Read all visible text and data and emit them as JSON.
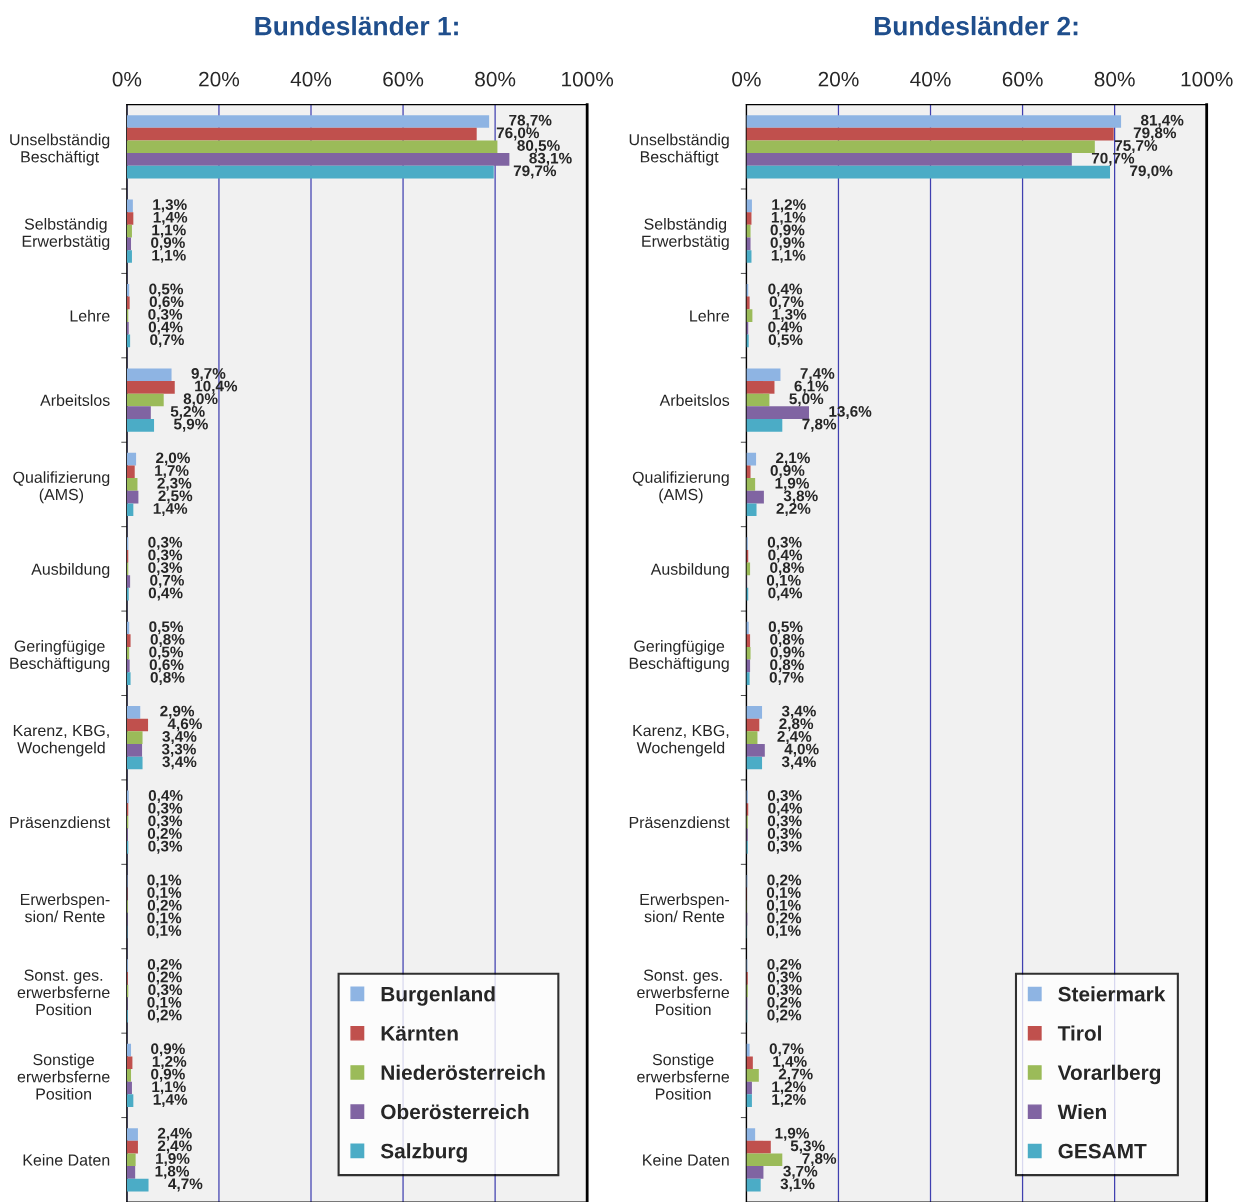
{
  "chart_data": [
    {
      "type": "bar",
      "orientation": "horizontal",
      "title": "Bundesländer 1:",
      "categories": [
        "Unselbständig\nBeschäftigt",
        "Selbständig\nErwerbstätig",
        "Lehre",
        "Arbeitslos",
        "Qualifizierung\n(AMS)",
        "Ausbildung",
        "Geringfügige\nBeschäftigung",
        "Karenz, KBG,\nWochengeld",
        "Präsenzdienst",
        "Erwerbspen-\nsion/ Rente",
        "Sonst. ges.\nerwerbsferne\nPosition",
        "Sonstige\nerwerbsferne\nPosition",
        "Keine Daten"
      ],
      "series": [
        {
          "name": "Burgenland",
          "color": "#8eb4e3",
          "values": [
            78.7,
            1.3,
            0.5,
            9.7,
            2.0,
            0.3,
            0.5,
            2.9,
            0.4,
            0.1,
            0.2,
            0.9,
            2.4
          ],
          "value_labels": [
            "78,7%",
            "1,3%",
            "0,5%",
            "9,7%",
            "2,0%",
            "0,3%",
            "0,5%",
            "2,9%",
            "0,4%",
            "0,1%",
            "0,2%",
            "0,9%",
            "2,4%"
          ]
        },
        {
          "name": "Kärnten",
          "color": "#c0504d",
          "values": [
            76.0,
            1.4,
            0.6,
            10.4,
            1.7,
            0.3,
            0.8,
            4.6,
            0.3,
            0.1,
            0.2,
            1.2,
            2.4
          ],
          "value_labels": [
            "76,0%",
            "1,4%",
            "0,6%",
            "10,4%",
            "1,7%",
            "0,3%",
            "0,8%",
            "4,6%",
            "0,3%",
            "0,1%",
            "0,2%",
            "1,2%",
            "2,4%"
          ]
        },
        {
          "name": "Niederösterreich",
          "color": "#9bbb59",
          "values": [
            80.5,
            1.1,
            0.3,
            8.0,
            2.3,
            0.3,
            0.5,
            3.4,
            0.3,
            0.2,
            0.3,
            0.9,
            1.9
          ],
          "value_labels": [
            "80,5%",
            "1,1%",
            "0,3%",
            "8,0%",
            "2,3%",
            "0,3%",
            "0,5%",
            "3,4%",
            "0,3%",
            "0,2%",
            "0,3%",
            "0,9%",
            "1,9%"
          ]
        },
        {
          "name": "Oberösterreich",
          "color": "#8064a2",
          "values": [
            83.1,
            0.9,
            0.4,
            5.2,
            2.5,
            0.7,
            0.6,
            3.3,
            0.2,
            0.1,
            0.1,
            1.1,
            1.8
          ],
          "value_labels": [
            "83,1%",
            "0,9%",
            "0,4%",
            "5,2%",
            "2,5%",
            "0,7%",
            "0,6%",
            "3,3%",
            "0,2%",
            "0,1%",
            "0,1%",
            "1,1%",
            "1,8%"
          ]
        },
        {
          "name": "Salzburg",
          "color": "#4bacc6",
          "values": [
            79.7,
            1.1,
            0.7,
            5.9,
            1.4,
            0.4,
            0.8,
            3.4,
            0.3,
            0.1,
            0.2,
            1.4,
            4.7
          ],
          "value_labels": [
            "79,7%",
            "1,1%",
            "0,7%",
            "5,9%",
            "1,4%",
            "0,4%",
            "0,8%",
            "3,4%",
            "0,3%",
            "0,1%",
            "0,2%",
            "1,4%",
            "4,7%"
          ]
        }
      ],
      "xlim": [
        0,
        100
      ],
      "xticks": [
        {
          "value": 0,
          "label": "0%"
        },
        {
          "value": 20,
          "label": "20%"
        },
        {
          "value": 40,
          "label": "40%"
        },
        {
          "value": 60,
          "label": "60%"
        },
        {
          "value": 80,
          "label": "80%"
        },
        {
          "value": 100,
          "label": "100%"
        }
      ],
      "grid": "x",
      "legend": "bottom right"
    },
    {
      "type": "bar",
      "orientation": "horizontal",
      "title": "Bundesländer 2:",
      "categories": [
        "Unselbständig\nBeschäftigt",
        "Selbständig\nErwerbstätig",
        "Lehre",
        "Arbeitslos",
        "Qualifizierung\n(AMS)",
        "Ausbildung",
        "Geringfügige\nBeschäftigung",
        "Karenz, KBG,\nWochengeld",
        "Präsenzdienst",
        "Erwerbspen-\nsion/ Rente",
        "Sonst. ges.\nerwerbsferne\nPosition",
        "Sonstige\nerwerbsferne\nPosition",
        "Keine Daten"
      ],
      "series": [
        {
          "name": "Steiermark",
          "color": "#8eb4e3",
          "values": [
            81.4,
            1.2,
            0.4,
            7.4,
            2.1,
            0.3,
            0.5,
            3.4,
            0.3,
            0.2,
            0.2,
            0.7,
            1.9
          ],
          "value_labels": [
            "81,4%",
            "1,2%",
            "0,4%",
            "7,4%",
            "2,1%",
            "0,3%",
            "0,5%",
            "3,4%",
            "0,3%",
            "0,2%",
            "0,2%",
            "0,7%",
            "1,9%"
          ]
        },
        {
          "name": "Tirol",
          "color": "#c0504d",
          "values": [
            79.8,
            1.1,
            0.7,
            6.1,
            0.9,
            0.4,
            0.8,
            2.8,
            0.4,
            0.1,
            0.3,
            1.4,
            5.3
          ],
          "value_labels": [
            "79,8%",
            "1,1%",
            "0,7%",
            "6,1%",
            "0,9%",
            "0,4%",
            "0,8%",
            "2,8%",
            "0,4%",
            "0,1%",
            "0,3%",
            "1,4%",
            "5,3%"
          ]
        },
        {
          "name": "Vorarlberg",
          "color": "#9bbb59",
          "values": [
            75.7,
            0.9,
            1.3,
            5.0,
            1.9,
            0.8,
            0.9,
            2.4,
            0.3,
            0.1,
            0.3,
            2.7,
            7.8
          ],
          "value_labels": [
            "75,7%",
            "0,9%",
            "1,3%",
            "5,0%",
            "1,9%",
            "0,8%",
            "0,9%",
            "2,4%",
            "0,3%",
            "0,1%",
            "0,3%",
            "2,7%",
            "7,8%"
          ]
        },
        {
          "name": "Wien",
          "color": "#8064a2",
          "values": [
            70.7,
            0.9,
            0.4,
            13.6,
            3.8,
            0.1,
            0.8,
            4.0,
            0.3,
            0.2,
            0.2,
            1.2,
            3.7
          ],
          "value_labels": [
            "70,7%",
            "0,9%",
            "0,4%",
            "13,6%",
            "3,8%",
            "0,1%",
            "0,8%",
            "4,0%",
            "0,3%",
            "0,2%",
            "0,2%",
            "1,2%",
            "3,7%"
          ]
        },
        {
          "name": "GESAMT",
          "color": "#4bacc6",
          "values": [
            79.0,
            1.1,
            0.5,
            7.8,
            2.2,
            0.4,
            0.7,
            3.4,
            0.3,
            0.1,
            0.2,
            1.2,
            3.1
          ],
          "value_labels": [
            "79,0%",
            "1,1%",
            "0,5%",
            "7,8%",
            "2,2%",
            "0,4%",
            "0,7%",
            "3,4%",
            "0,3%",
            "0,1%",
            "0,2%",
            "1,2%",
            "3,1%"
          ]
        }
      ],
      "xlim": [
        0,
        100
      ],
      "xticks": [
        {
          "value": 0,
          "label": "0%"
        },
        {
          "value": 20,
          "label": "20%"
        },
        {
          "value": 40,
          "label": "40%"
        },
        {
          "value": 60,
          "label": "60%"
        },
        {
          "value": 80,
          "label": "80%"
        },
        {
          "value": 100,
          "label": "100%"
        }
      ],
      "grid": "x",
      "legend": "bottom right"
    }
  ]
}
